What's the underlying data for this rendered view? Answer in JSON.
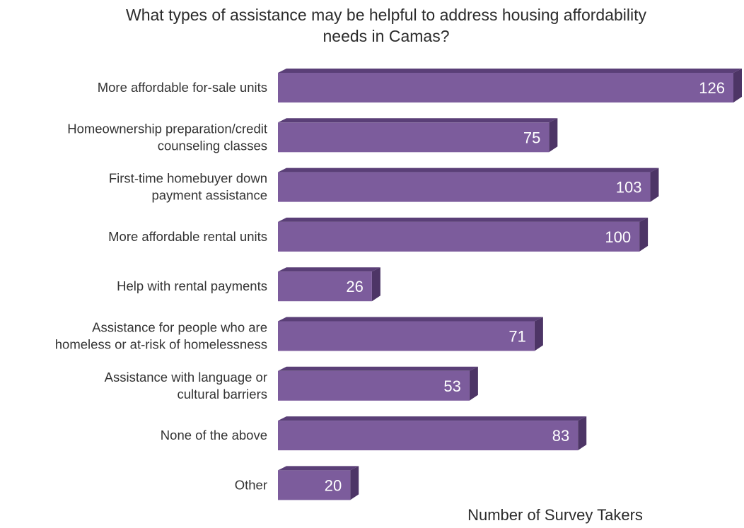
{
  "chart_data": {
    "type": "bar",
    "orientation": "horizontal",
    "title_lines": [
      "What types of assistance may be helpful to address housing affordability",
      "needs in Camas?"
    ],
    "xlabel": "Number of Survey Takers",
    "ylabel": "",
    "xlim": [
      0,
      126
    ],
    "grid": false,
    "legend": "none",
    "categories": [
      [
        "More affordable for-sale units"
      ],
      [
        "Homeownership preparation/credit",
        "counseling classes"
      ],
      [
        "First-time homebuyer down",
        "payment assistance"
      ],
      [
        "More affordable rental units"
      ],
      [
        "Help with rental payments"
      ],
      [
        "Assistance for people who are",
        "homeless or at-risk of homelessness"
      ],
      [
        "Assistance with language or",
        "cultural barriers"
      ],
      [
        "None of the above"
      ],
      [
        "Other"
      ]
    ],
    "values": [
      126,
      75,
      103,
      100,
      26,
      71,
      53,
      83,
      20
    ],
    "colors": {
      "bar_front": "#7c5c9c",
      "bar_top": "#5a3f77",
      "bar_side": "#4d3566",
      "value_text": "#ffffff"
    }
  }
}
